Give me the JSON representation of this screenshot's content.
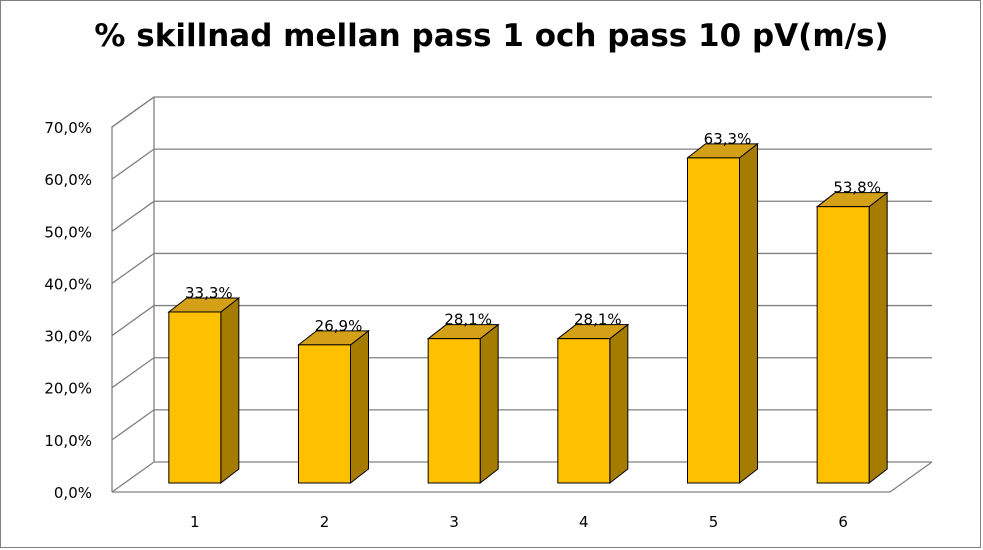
{
  "chart_data": {
    "type": "bar",
    "title": "% skillnad mellan pass 1 och pass 10 pV(m/s)",
    "xlabel": "",
    "ylabel": "",
    "categories": [
      "1",
      "2",
      "3",
      "4",
      "5",
      "6"
    ],
    "values": [
      33.3,
      26.9,
      28.1,
      28.1,
      63.3,
      53.8
    ],
    "data_labels": [
      "33,3%",
      "26,9%",
      "28,1%",
      "28,1%",
      "63,3%",
      "53,8%"
    ],
    "y_ticks": [
      "0,0%",
      "10,0%",
      "20,0%",
      "30,0%",
      "40,0%",
      "50,0%",
      "60,0%",
      "70,0%"
    ],
    "ylim": [
      0,
      70
    ],
    "grid": true,
    "legend": "none",
    "style": "3d",
    "colors": {
      "bar_front": "#ffc000",
      "bar_side": "#a67c00",
      "bar_top": "#d4a017",
      "grid": "#808080"
    }
  }
}
